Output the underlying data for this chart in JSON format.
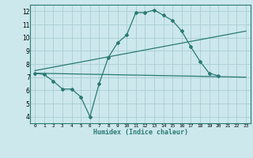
{
  "xlabel": "Humidex (Indice chaleur)",
  "ylabel": "",
  "bg_color": "#cce8ec",
  "grid_color": "#aacdd4",
  "line_color": "#2a7a72",
  "xlim": [
    -0.5,
    23.5
  ],
  "ylim": [
    3.5,
    12.5
  ],
  "xticks": [
    0,
    1,
    2,
    3,
    4,
    5,
    6,
    7,
    8,
    9,
    10,
    11,
    12,
    13,
    14,
    15,
    16,
    17,
    18,
    19,
    20,
    21,
    22,
    23
  ],
  "yticks": [
    4,
    5,
    6,
    7,
    8,
    9,
    10,
    11,
    12
  ],
  "line1_x": [
    0,
    1,
    2,
    3,
    4,
    5,
    6,
    7,
    8,
    9,
    10,
    11,
    12,
    13,
    14,
    15,
    16,
    17,
    18,
    19,
    20,
    21,
    22,
    23
  ],
  "line1_y": [
    7.3,
    7.2,
    6.7,
    6.1,
    6.1,
    5.5,
    4.0,
    6.5,
    8.5,
    9.6,
    10.2,
    11.9,
    11.9,
    12.1,
    11.7,
    11.3,
    10.5,
    9.3,
    8.2,
    7.3,
    7.1,
    null,
    null,
    null
  ],
  "line2_x": [
    0,
    23
  ],
  "line2_y": [
    7.3,
    7.0
  ],
  "line3_x": [
    0,
    23
  ],
  "line3_y": [
    7.5,
    10.5
  ]
}
